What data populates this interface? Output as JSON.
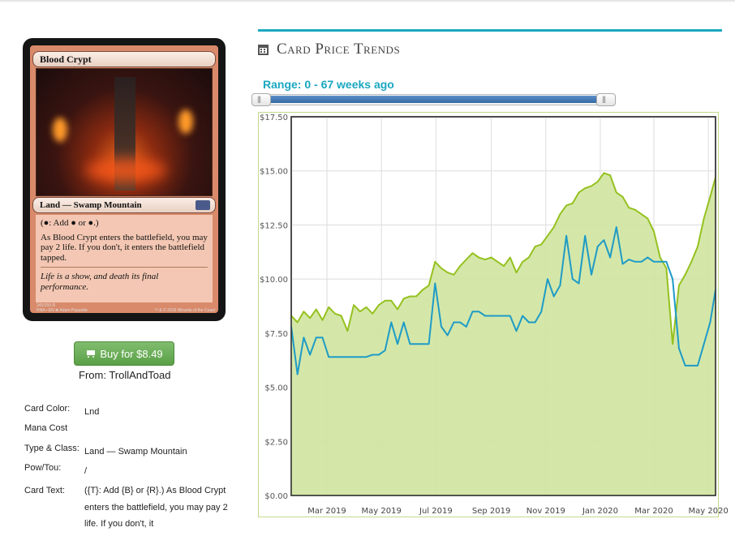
{
  "card": {
    "name": "Blood Crypt",
    "type_line": "Land — Swamp Mountain",
    "rules_1": "(●: Add ● or ●.)",
    "rules_2": "As Blood Crypt enters the battlefield, you may pay 2 life. If you don't, it enters the battlefield tapped.",
    "flavor": "Life is a show, and death its final performance.",
    "footer_1": "245/259 R",
    "footer_2": "RNA • EN ❀ Adam Paquette",
    "footer_3": "™ & © 2019 Wizards of the Coast"
  },
  "buy": {
    "label": "Buy for $8.49",
    "from": "From: TrollAndToad"
  },
  "details": {
    "rows": [
      {
        "label": "Card Color:",
        "value": "Lnd"
      },
      {
        "label": "Mana Cost",
        "value": ""
      },
      {
        "label": "Type & Class:",
        "value": "Land — Swamp Mountain"
      },
      {
        "label": "Pow/Tou:",
        "value": "/"
      },
      {
        "label": "Card Text:",
        "value": "({T}: Add {B} or {R}.) As Blood Crypt enters the battlefield, you may pay 2 life. If you don't, it"
      }
    ]
  },
  "section": {
    "title": "Card Price Trends",
    "range_label": "Range: 0 - 67 weeks ago"
  },
  "slider": {
    "min_weeks": 0,
    "max_weeks": 67,
    "low_fraction": 0.0,
    "high_fraction": 1.0
  },
  "chart_data": {
    "type": "area",
    "title": "",
    "xlabel": "",
    "ylabel": "",
    "ylim": [
      0,
      17.5
    ],
    "xlim": [
      "2019-01-20",
      "2020-05-09"
    ],
    "yticks": [
      "$0.00",
      "$2.50",
      "$5.00",
      "$7.50",
      "$10.00",
      "$12.50",
      "$15.00",
      "$17.50"
    ],
    "ytick_values": [
      0,
      2.5,
      5,
      7.5,
      10,
      12.5,
      15,
      17.5
    ],
    "xticks": [
      "Mar 2019",
      "May 2019",
      "Jul 2019",
      "Sep 2019",
      "Nov 2019",
      "Jan 2020",
      "Mar 2020",
      "May 2020"
    ],
    "xtick_dates": [
      "2019-03-01",
      "2019-05-01",
      "2019-07-01",
      "2019-09-01",
      "2019-11-01",
      "2020-01-01",
      "2020-03-01",
      "2020-05-01"
    ],
    "grid": true,
    "colors": {
      "green": "#95c11f",
      "fill": "#cfe4a0",
      "blue": "#1e9bc6"
    },
    "series": [
      {
        "color": "green",
        "x": [
          "2019-01-20",
          "2019-01-27",
          "2019-02-03",
          "2019-02-10",
          "2019-02-17",
          "2019-02-24",
          "2019-03-03",
          "2019-03-10",
          "2019-03-17",
          "2019-03-24",
          "2019-03-31",
          "2019-04-07",
          "2019-04-14",
          "2019-04-21",
          "2019-04-28",
          "2019-05-05",
          "2019-05-12",
          "2019-05-19",
          "2019-05-26",
          "2019-06-02",
          "2019-06-09",
          "2019-06-16",
          "2019-06-23",
          "2019-06-30",
          "2019-07-07",
          "2019-07-14",
          "2019-07-21",
          "2019-07-28",
          "2019-08-04",
          "2019-08-11",
          "2019-08-18",
          "2019-08-25",
          "2019-09-01",
          "2019-09-08",
          "2019-09-15",
          "2019-09-22",
          "2019-09-29",
          "2019-10-06",
          "2019-10-13",
          "2019-10-20",
          "2019-10-27",
          "2019-11-03",
          "2019-11-10",
          "2019-11-17",
          "2019-11-24",
          "2019-12-01",
          "2019-12-08",
          "2019-12-15",
          "2019-12-22",
          "2019-12-29",
          "2020-01-05",
          "2020-01-12",
          "2020-01-19",
          "2020-01-26",
          "2020-02-02",
          "2020-02-09",
          "2020-02-16",
          "2020-02-23",
          "2020-03-01",
          "2020-03-08",
          "2020-03-15",
          "2020-03-22",
          "2020-03-29",
          "2020-04-05",
          "2020-04-12",
          "2020-04-19",
          "2020-04-26",
          "2020-05-03",
          "2020-05-09"
        ],
        "values": [
          8.3,
          8.0,
          8.5,
          8.2,
          8.6,
          8.1,
          8.7,
          8.4,
          8.3,
          7.6,
          8.8,
          8.5,
          8.7,
          8.4,
          8.8,
          9.0,
          9.0,
          8.6,
          9.1,
          9.2,
          9.2,
          9.5,
          9.7,
          10.8,
          10.5,
          10.3,
          10.2,
          10.6,
          10.9,
          11.2,
          11.0,
          10.9,
          11.0,
          10.8,
          10.6,
          11.0,
          10.3,
          10.8,
          11.0,
          11.5,
          11.6,
          12.0,
          12.4,
          13.0,
          13.4,
          13.5,
          14.0,
          14.2,
          14.3,
          14.5,
          14.9,
          14.8,
          14.0,
          13.8,
          13.3,
          13.2,
          13.0,
          12.8,
          12.2,
          11.0,
          10.5,
          7.0,
          9.7,
          10.2,
          10.8,
          11.5,
          12.8,
          13.8,
          14.7
        ]
      },
      {
        "color": "blue",
        "x": [
          "2019-01-20",
          "2019-01-27",
          "2019-02-03",
          "2019-02-10",
          "2019-02-17",
          "2019-02-24",
          "2019-03-03",
          "2019-03-10",
          "2019-03-17",
          "2019-03-24",
          "2019-03-31",
          "2019-04-07",
          "2019-04-14",
          "2019-04-21",
          "2019-04-28",
          "2019-05-05",
          "2019-05-12",
          "2019-05-19",
          "2019-05-26",
          "2019-06-02",
          "2019-06-09",
          "2019-06-16",
          "2019-06-23",
          "2019-06-30",
          "2019-07-07",
          "2019-07-14",
          "2019-07-21",
          "2019-07-28",
          "2019-08-04",
          "2019-08-11",
          "2019-08-18",
          "2019-08-25",
          "2019-09-01",
          "2019-09-08",
          "2019-09-15",
          "2019-09-22",
          "2019-09-29",
          "2019-10-06",
          "2019-10-13",
          "2019-10-20",
          "2019-10-27",
          "2019-11-03",
          "2019-11-10",
          "2019-11-17",
          "2019-11-24",
          "2019-12-01",
          "2019-12-08",
          "2019-12-15",
          "2019-12-22",
          "2019-12-29",
          "2020-01-05",
          "2020-01-12",
          "2020-01-19",
          "2020-01-26",
          "2020-02-02",
          "2020-02-09",
          "2020-02-16",
          "2020-02-23",
          "2020-03-01",
          "2020-03-08",
          "2020-03-15",
          "2020-03-22",
          "2020-03-29",
          "2020-04-05",
          "2020-04-12",
          "2020-04-19",
          "2020-04-26",
          "2020-05-03",
          "2020-05-09"
        ],
        "values": [
          7.8,
          5.6,
          7.3,
          6.5,
          7.3,
          7.3,
          6.4,
          6.4,
          6.4,
          6.4,
          6.4,
          6.4,
          6.4,
          6.5,
          6.5,
          6.7,
          8.0,
          7.0,
          8.0,
          7.0,
          7.0,
          7.0,
          7.0,
          9.8,
          7.8,
          7.4,
          8.0,
          8.0,
          7.8,
          8.5,
          8.5,
          8.3,
          8.3,
          8.3,
          8.3,
          8.3,
          7.6,
          8.3,
          8.0,
          8.0,
          8.5,
          10.0,
          9.2,
          9.7,
          12.0,
          10.0,
          9.8,
          12.0,
          10.2,
          11.5,
          11.8,
          11.0,
          12.4,
          10.7,
          10.9,
          10.8,
          10.8,
          11.0,
          10.8,
          10.8,
          10.8,
          10.0,
          6.8,
          6.0,
          6.0,
          6.0,
          7.0,
          8.0,
          9.5
        ]
      }
    ]
  }
}
